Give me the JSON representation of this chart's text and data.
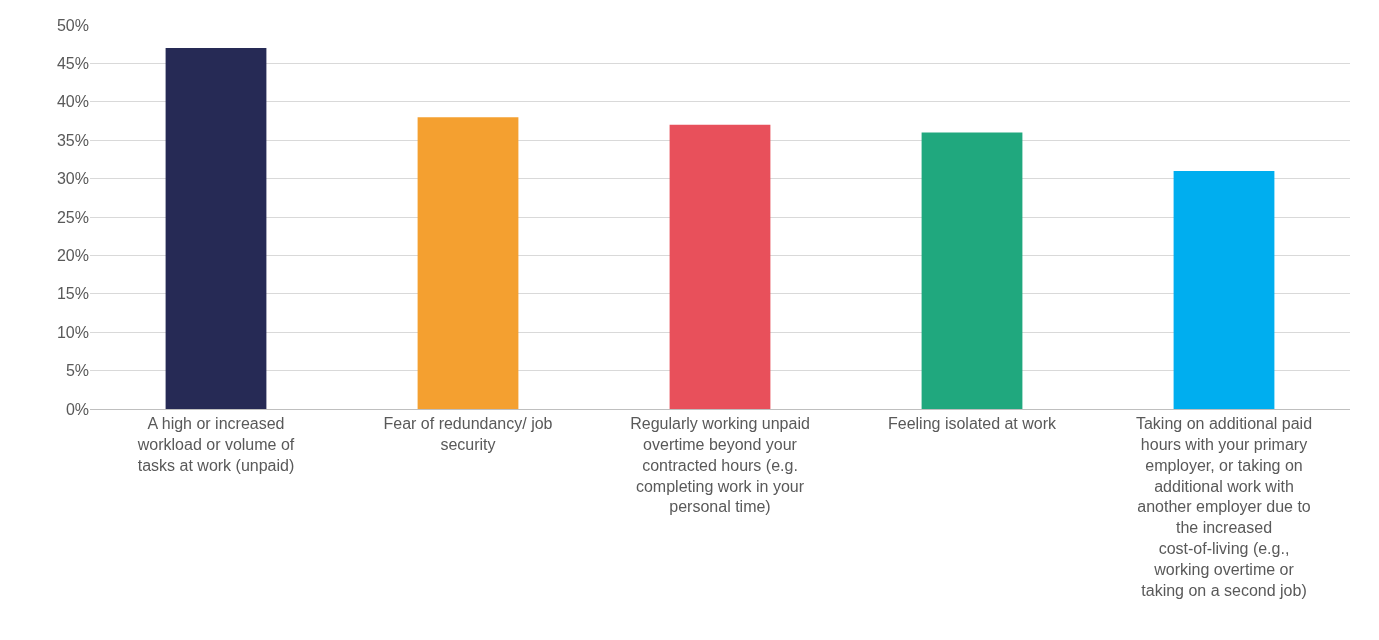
{
  "chart_data": {
    "type": "bar",
    "categories": [
      "A high or increased workload or volume of tasks at work (unpaid)",
      "Fear of redundancy/ job security",
      "Regularly working unpaid overtime beyond your contracted hours (e.g. completing work in your personal time)",
      "Feeling isolated at work",
      "Taking on additional paid hours with your primary employer, or taking on additional work with another employer due to the increased cost-of-living (e.g., working overtime or taking on a second job)"
    ],
    "values": [
      47,
      38,
      37,
      36,
      31
    ],
    "colors": [
      "#262a55",
      "#f4a030",
      "#e8505b",
      "#20a87e",
      "#00aeef"
    ],
    "ylim": [
      0,
      50
    ],
    "yticks": [
      {
        "value": 0,
        "label": "0%"
      },
      {
        "value": 5,
        "label": "5%"
      },
      {
        "value": 10,
        "label": "10%"
      },
      {
        "value": 15,
        "label": "15%"
      },
      {
        "value": 20,
        "label": "20%"
      },
      {
        "value": 25,
        "label": "25%"
      },
      {
        "value": 30,
        "label": "30%"
      },
      {
        "value": 35,
        "label": "35%"
      },
      {
        "value": 40,
        "label": "40%"
      },
      {
        "value": 45,
        "label": "45%"
      },
      {
        "value": 50,
        "label": "50%"
      }
    ],
    "grid": "y"
  }
}
